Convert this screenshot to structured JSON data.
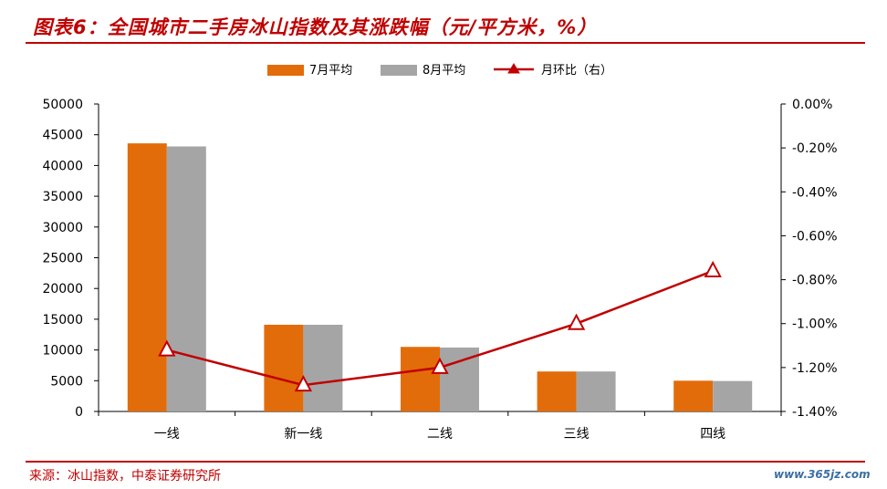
{
  "header": {
    "title": "图表6：全国城市二手房冰山指数及其涨跌幅（元/平方米，%）"
  },
  "chart_data": {
    "type": "bar",
    "categories": [
      "一线",
      "新一线",
      "二线",
      "三线",
      "四线"
    ],
    "series": [
      {
        "name": "7月平均",
        "type": "bar",
        "axis": "left",
        "color": "#e36c0a",
        "values": [
          43600,
          14100,
          10500,
          6500,
          5000
        ]
      },
      {
        "name": "8月平均",
        "type": "bar",
        "axis": "left",
        "color": "#a5a5a5",
        "values": [
          43100,
          14100,
          10400,
          6500,
          4950
        ]
      },
      {
        "name": "月环比（右）",
        "type": "line",
        "axis": "right",
        "color": "#c00000",
        "marker": "triangle",
        "values": [
          -1.12,
          -1.28,
          -1.2,
          -1.0,
          -0.76
        ]
      }
    ],
    "y_left": {
      "ylim": [
        0,
        50000
      ],
      "ticks": [
        "50000",
        "45000",
        "40000",
        "35000",
        "30000",
        "25000",
        "20000",
        "15000",
        "10000",
        "5000",
        "0"
      ]
    },
    "y_right": {
      "ylim": [
        -1.4,
        0.0
      ],
      "ticks": [
        "0.00%",
        "-0.20%",
        "-0.40%",
        "-0.60%",
        "-0.80%",
        "-1.00%",
        "-1.20%",
        "-1.40%"
      ]
    },
    "legend_position": "top",
    "grid": false
  },
  "footer": {
    "source": "来源：冰山指数，中泰证券研究所",
    "watermark": "www.365jz.com"
  }
}
